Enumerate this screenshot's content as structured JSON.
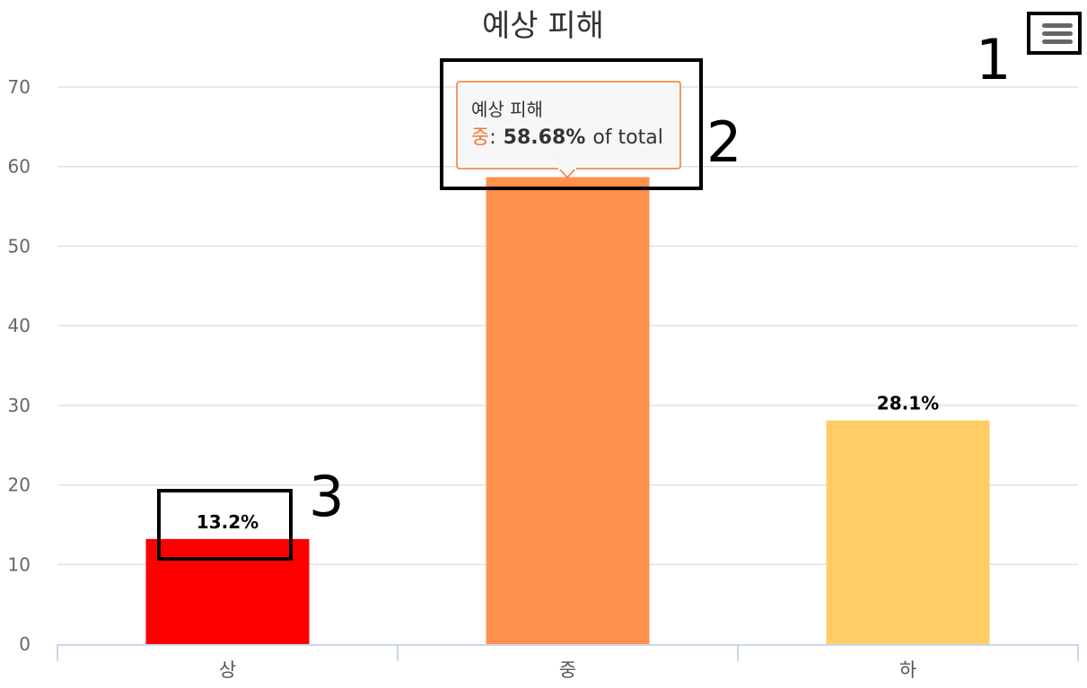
{
  "chart_data": {
    "type": "bar",
    "title": "예상 피해",
    "categories": [
      "상",
      "중",
      "하"
    ],
    "values": [
      13.2,
      58.68,
      28.1
    ],
    "data_labels": [
      "13.2%",
      "58.7%",
      "28.1%"
    ],
    "colors": [
      "#ff0000",
      "#ff914d",
      "#ffcc66"
    ],
    "y_ticks": [
      "0",
      "10",
      "20",
      "30",
      "40",
      "50",
      "60",
      "70"
    ],
    "ylim": [
      0,
      70
    ],
    "grid": true,
    "legend": "none"
  },
  "tooltip": {
    "title": "예상 피해",
    "category": "중",
    "separator": ":",
    "value": "58.68%",
    "suffix": "of total",
    "color": "#f07833"
  },
  "menu_icon": "hamburger-menu-icon",
  "annotations": [
    "1",
    "2",
    "3"
  ]
}
